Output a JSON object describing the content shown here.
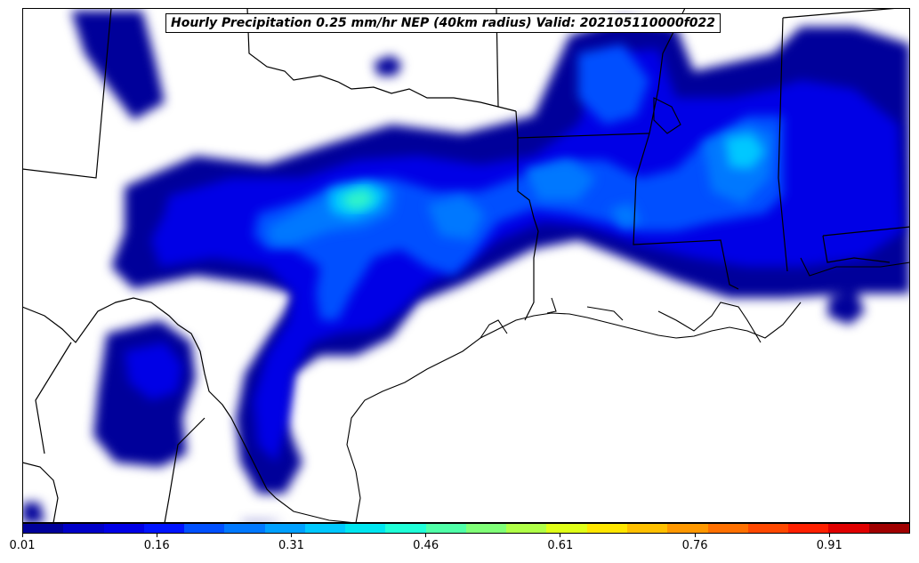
{
  "map": {
    "title": "Hourly Precipitation 0.25 mm/hr NEP (40km radius) Valid: 202105110000f022",
    "field": "neighborhood exceedance probability",
    "basemap_lines": [
      "coastline",
      "state-borders",
      "country-borders"
    ]
  },
  "colorbar": {
    "min": 0.01,
    "max": 1.0,
    "tick_labels": [
      "0.01",
      "0.16",
      "0.31",
      "0.46",
      "0.61",
      "0.76",
      "0.91"
    ],
    "tick_values": [
      0.01,
      0.16,
      0.31,
      0.46,
      0.61,
      0.76,
      0.91
    ],
    "colors": [
      "#00009a",
      "#0000c8",
      "#0000e6",
      "#0014ff",
      "#0050ff",
      "#0078ff",
      "#00a0ff",
      "#00c8ff",
      "#00e6f0",
      "#20ffd8",
      "#50ffa8",
      "#80ff78",
      "#b0ff48",
      "#e0ff18",
      "#ffe600",
      "#ffc000",
      "#ff9800",
      "#ff7000",
      "#ff4800",
      "#ff2000",
      "#e00000",
      "#a00000"
    ]
  }
}
